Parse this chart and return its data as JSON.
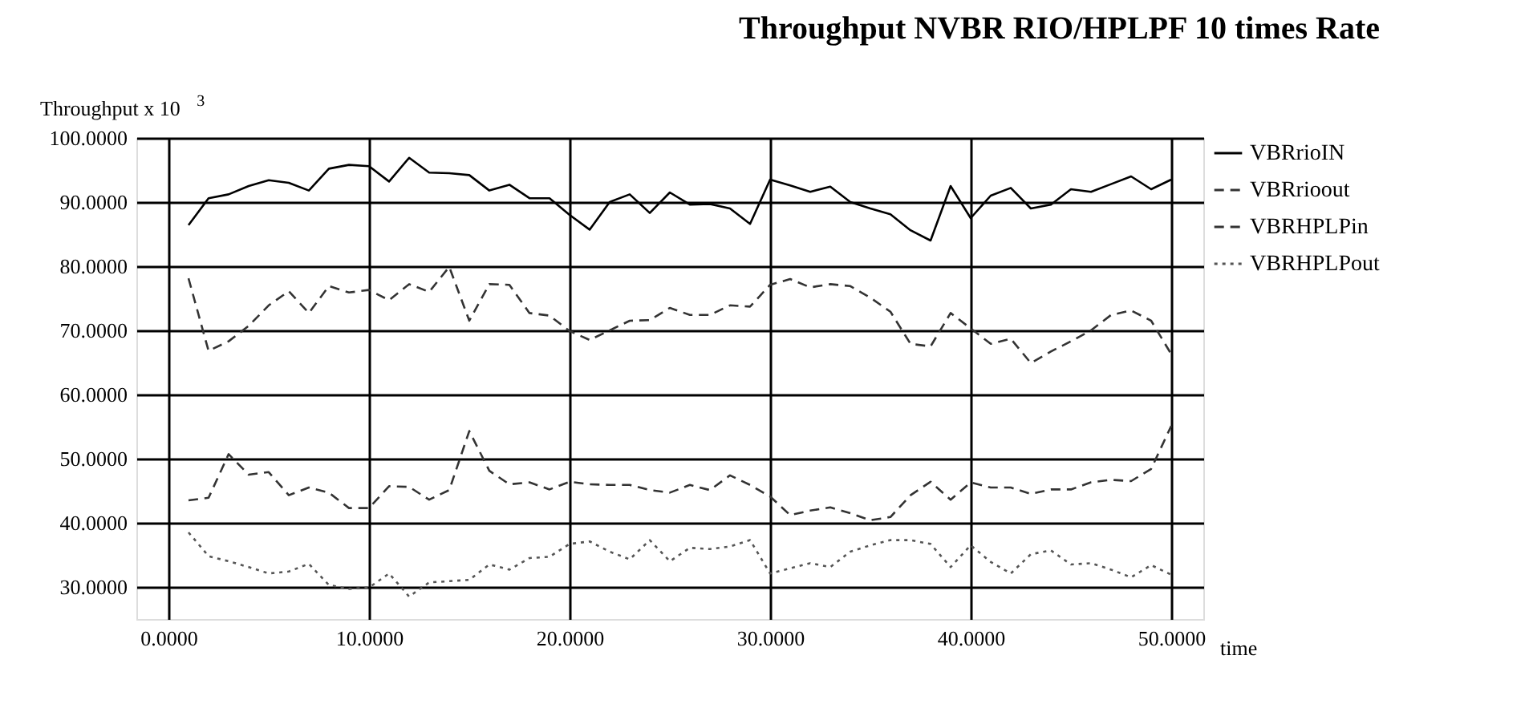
{
  "chart_data": {
    "type": "line",
    "title": "Throughput  NVBR  RIO/HPLPF 10  times Rate",
    "ylabel": "Throughput  x 10$^{3}$",
    "xlabel": "time",
    "x": [
      1,
      2,
      3,
      4,
      5,
      6,
      7,
      8,
      9,
      10,
      11,
      12,
      13,
      14,
      15,
      16,
      17,
      18,
      19,
      20,
      21,
      22,
      23,
      24,
      25,
      26,
      27,
      28,
      29,
      30,
      31,
      32,
      33,
      34,
      35,
      36,
      37,
      38,
      39,
      40,
      41,
      42,
      43,
      44,
      45,
      46,
      47,
      48,
      49,
      50
    ],
    "series": [
      {
        "name": "VBRrioIN",
        "color": "#000000",
        "line_style": "solid",
        "values": [
          86.4,
          90.6,
          91.2,
          92.5,
          93.4,
          93.0,
          91.8,
          95.2,
          95.8,
          95.6,
          93.2,
          96.9,
          94.6,
          94.5,
          94.2,
          91.8,
          92.7,
          90.6,
          90.6,
          88.0,
          85.7,
          90.0,
          91.2,
          88.3,
          91.5,
          89.6,
          89.7,
          89.0,
          86.6,
          93.5,
          92.6,
          91.6,
          92.4,
          90.0,
          89.0,
          88.1,
          85.6,
          84.0,
          92.5,
          87.5,
          91.0,
          92.2,
          89.0,
          89.6,
          92.0,
          91.6,
          92.8,
          94.0,
          92.0,
          93.5
        ]
      },
      {
        "name": "VBRrioout",
        "color": "#333333",
        "line_style": "dashed",
        "values": [
          78.1,
          66.8,
          68.3,
          70.7,
          73.9,
          76.1,
          72.7,
          76.9,
          75.9,
          76.3,
          74.7,
          77.2,
          76.0,
          79.9,
          71.5,
          77.2,
          77.1,
          72.7,
          72.3,
          69.9,
          68.5,
          70.0,
          71.5,
          71.6,
          73.5,
          72.4,
          72.4,
          73.9,
          73.7,
          77.1,
          78.0,
          76.7,
          77.2,
          76.9,
          75.1,
          72.9,
          67.9,
          67.5,
          72.7,
          70.3,
          67.9,
          68.7,
          64.9,
          66.7,
          68.3,
          70.0,
          72.4,
          73.1,
          71.5,
          66.3
        ]
      },
      {
        "name": "VBRHPLPin",
        "color": "#333333",
        "line_style": "dashed",
        "values": [
          43.5,
          43.9,
          50.7,
          47.5,
          47.9,
          44.3,
          45.5,
          44.7,
          42.3,
          42.3,
          45.7,
          45.6,
          43.6,
          45.1,
          54.3,
          48.1,
          46.0,
          46.3,
          45.2,
          46.4,
          46.0,
          45.9,
          45.9,
          45.1,
          44.7,
          45.9,
          45.1,
          47.4,
          45.9,
          44.1,
          41.2,
          41.9,
          42.4,
          41.5,
          40.4,
          40.9,
          44.3,
          46.4,
          43.6,
          46.3,
          45.5,
          45.5,
          44.5,
          45.2,
          45.2,
          46.3,
          46.7,
          46.5,
          48.4,
          55.1
        ]
      },
      {
        "name": "VBRHPLPout",
        "color": "#555555",
        "line_style": "dotted",
        "values": [
          38.5,
          34.8,
          34.0,
          33.1,
          32.1,
          32.4,
          33.6,
          30.3,
          29.7,
          29.9,
          32.1,
          28.5,
          30.7,
          30.9,
          31.1,
          33.5,
          32.7,
          34.5,
          34.7,
          36.7,
          37.1,
          35.5,
          34.3,
          37.3,
          34.0,
          36.1,
          35.9,
          36.3,
          37.3,
          32.1,
          32.9,
          33.7,
          33.1,
          35.5,
          36.5,
          37.3,
          37.3,
          36.7,
          33.1,
          36.5,
          33.9,
          32.1,
          35.1,
          35.7,
          33.5,
          33.7,
          32.7,
          31.5,
          33.4,
          31.9
        ]
      }
    ],
    "xlim": [
      -1.6,
      51.6
    ],
    "xticks": [
      {
        "value": 0,
        "label": "0.0000"
      },
      {
        "value": 10,
        "label": "10.0000"
      },
      {
        "value": 20,
        "label": "20.0000"
      },
      {
        "value": 30,
        "label": "30.0000"
      },
      {
        "value": 40,
        "label": "40.0000"
      },
      {
        "value": 50,
        "label": "50.0000"
      }
    ],
    "ylim": [
      25,
      100
    ],
    "yticks": [
      {
        "value": 30,
        "label": "30.0000"
      },
      {
        "value": 40,
        "label": "40.0000"
      },
      {
        "value": 50,
        "label": "50.0000"
      },
      {
        "value": 60,
        "label": "60.0000"
      },
      {
        "value": 70,
        "label": "70.0000"
      },
      {
        "value": 80,
        "label": "80.0000"
      },
      {
        "value": 90,
        "label": "90.0000"
      },
      {
        "value": 100,
        "label": "100.0000"
      }
    ],
    "grid": true,
    "legend": "right",
    "marker": "none"
  }
}
